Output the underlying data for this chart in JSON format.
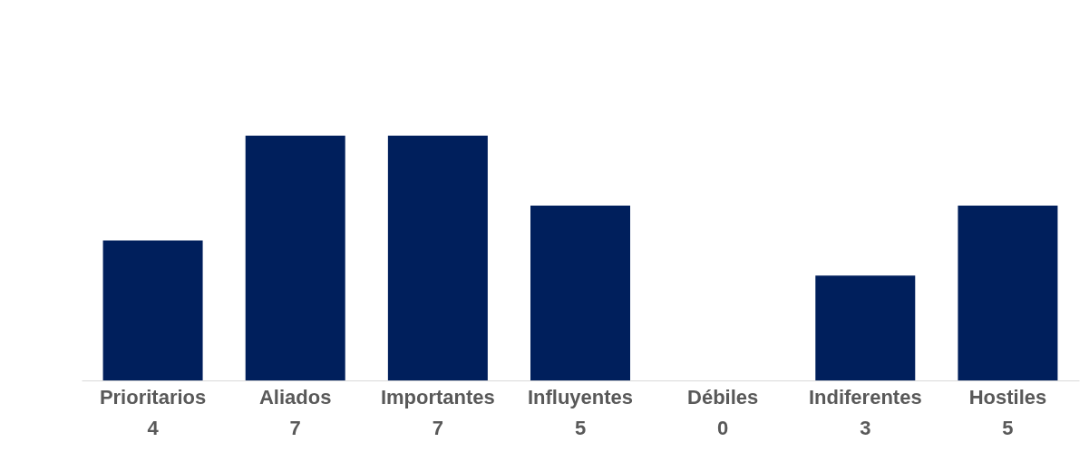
{
  "chart_data": {
    "type": "bar",
    "categories": [
      "Prioritarios",
      "Aliados",
      "Importantes",
      "Influyentes",
      "Débiles",
      "Indiferentes",
      "Hostiles"
    ],
    "values": [
      4,
      7,
      7,
      5,
      0,
      3,
      5
    ],
    "color": "#001f5c",
    "data_labels": true
  }
}
